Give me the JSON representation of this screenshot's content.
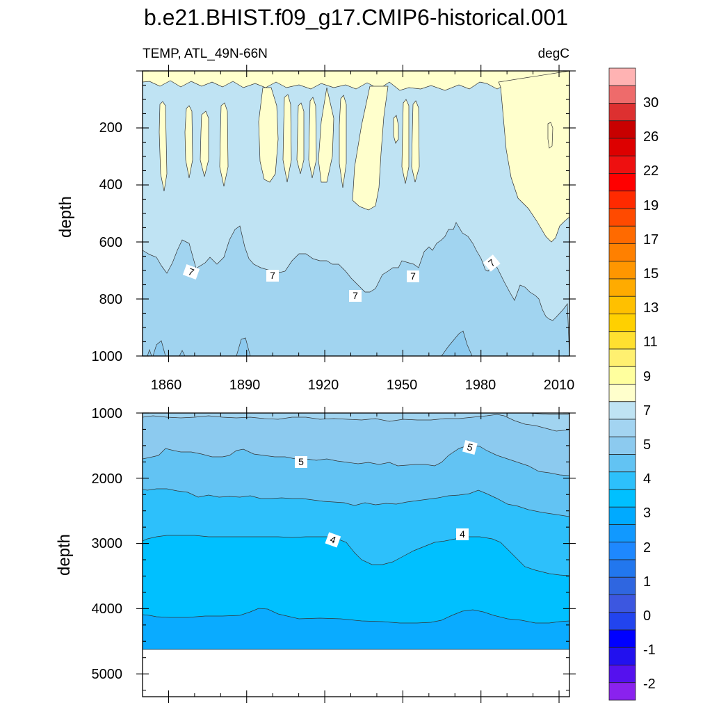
{
  "chart_data": {
    "type": "heatmap",
    "title": "b.e21.BHIST.f09_g17.CMIP6-historical.001",
    "variable_label": "TEMP, ATL_49N-66N",
    "units_label": "degC",
    "x_ticks": [
      "1860",
      "1890",
      "1920",
      "1950",
      "1980",
      "2010"
    ],
    "xlim": [
      1850,
      2014
    ],
    "panels": [
      {
        "name": "upper",
        "ylabel": "depth",
        "ylim": [
          0,
          1000
        ],
        "y_reversed": true,
        "y_ticks": [
          "200",
          "400",
          "600",
          "800",
          "1000"
        ],
        "contour_labels": [
          "7",
          "7",
          "7",
          "7",
          "7"
        ]
      },
      {
        "name": "lower",
        "ylabel": "depth",
        "ylim": [
          1000,
          5350
        ],
        "y_reversed": true,
        "y_ticks": [
          "1000",
          "2000",
          "3000",
          "4000",
          "5000"
        ],
        "contour_labels": [
          "5",
          "5",
          "4",
          "4"
        ]
      }
    ],
    "colorbar": {
      "labels": [
        "30",
        "26",
        "22",
        "19",
        "17",
        "15",
        "13",
        "11",
        "9",
        "7",
        "5",
        "4",
        "3",
        "2",
        "1",
        "0",
        "-1",
        "-2"
      ],
      "colors_top_to_bottom": [
        "#ffb3b3",
        "#ee6b6b",
        "#dd3030",
        "#c80000",
        "#dd0000",
        "#ee1010",
        "#ff0000",
        "#ff2a00",
        "#ff4a00",
        "#ff6a00",
        "#ff8000",
        "#ff9600",
        "#ffab00",
        "#ffc000",
        "#ffd000",
        "#ffe030",
        "#fff070",
        "#ffff9e",
        "#ffffcc",
        "#bfe3f3",
        "#a3d4f1",
        "#8ccaef",
        "#62c3f3",
        "#2dc0fb",
        "#00c0ff",
        "#00aaff",
        "#1199ff",
        "#1e88ff",
        "#2277ee",
        "#2f66e0",
        "#3c57e0",
        "#2244ee",
        "#0000ff",
        "#2211ee",
        "#5511ee",
        "#8a22ee"
      ]
    }
  }
}
